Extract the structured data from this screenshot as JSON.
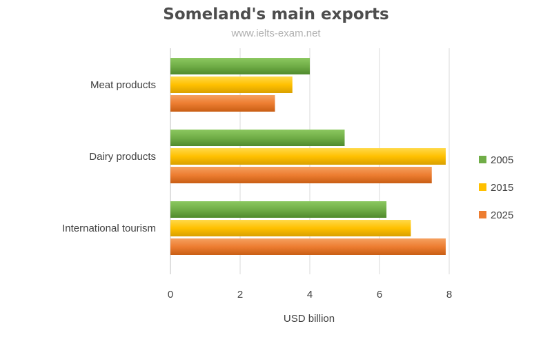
{
  "header": {
    "title": "Someland's main exports",
    "subtitle": "www.ielts-exam.net"
  },
  "chart_data": {
    "type": "bar",
    "orientation": "horizontal",
    "title": "Someland's main exports",
    "subtitle": "www.ielts-exam.net",
    "categories": [
      "Meat products",
      "Dairy products",
      "International tourism"
    ],
    "series": [
      {
        "name": "2005",
        "color": "#70ad47",
        "values": [
          4,
          5,
          6.2
        ]
      },
      {
        "name": "2015",
        "color": "#ffc000",
        "values": [
          3.5,
          7.9,
          6.9
        ]
      },
      {
        "name": "2025",
        "color": "#ed7d31",
        "values": [
          3,
          7.5,
          7.9
        ]
      }
    ],
    "xlabel": "USD billion",
    "ylabel": "",
    "xlim": [
      0,
      8
    ],
    "xticks": [
      "0",
      "2",
      "4",
      "6",
      "8"
    ],
    "grid": true,
    "legend_position": "right"
  }
}
